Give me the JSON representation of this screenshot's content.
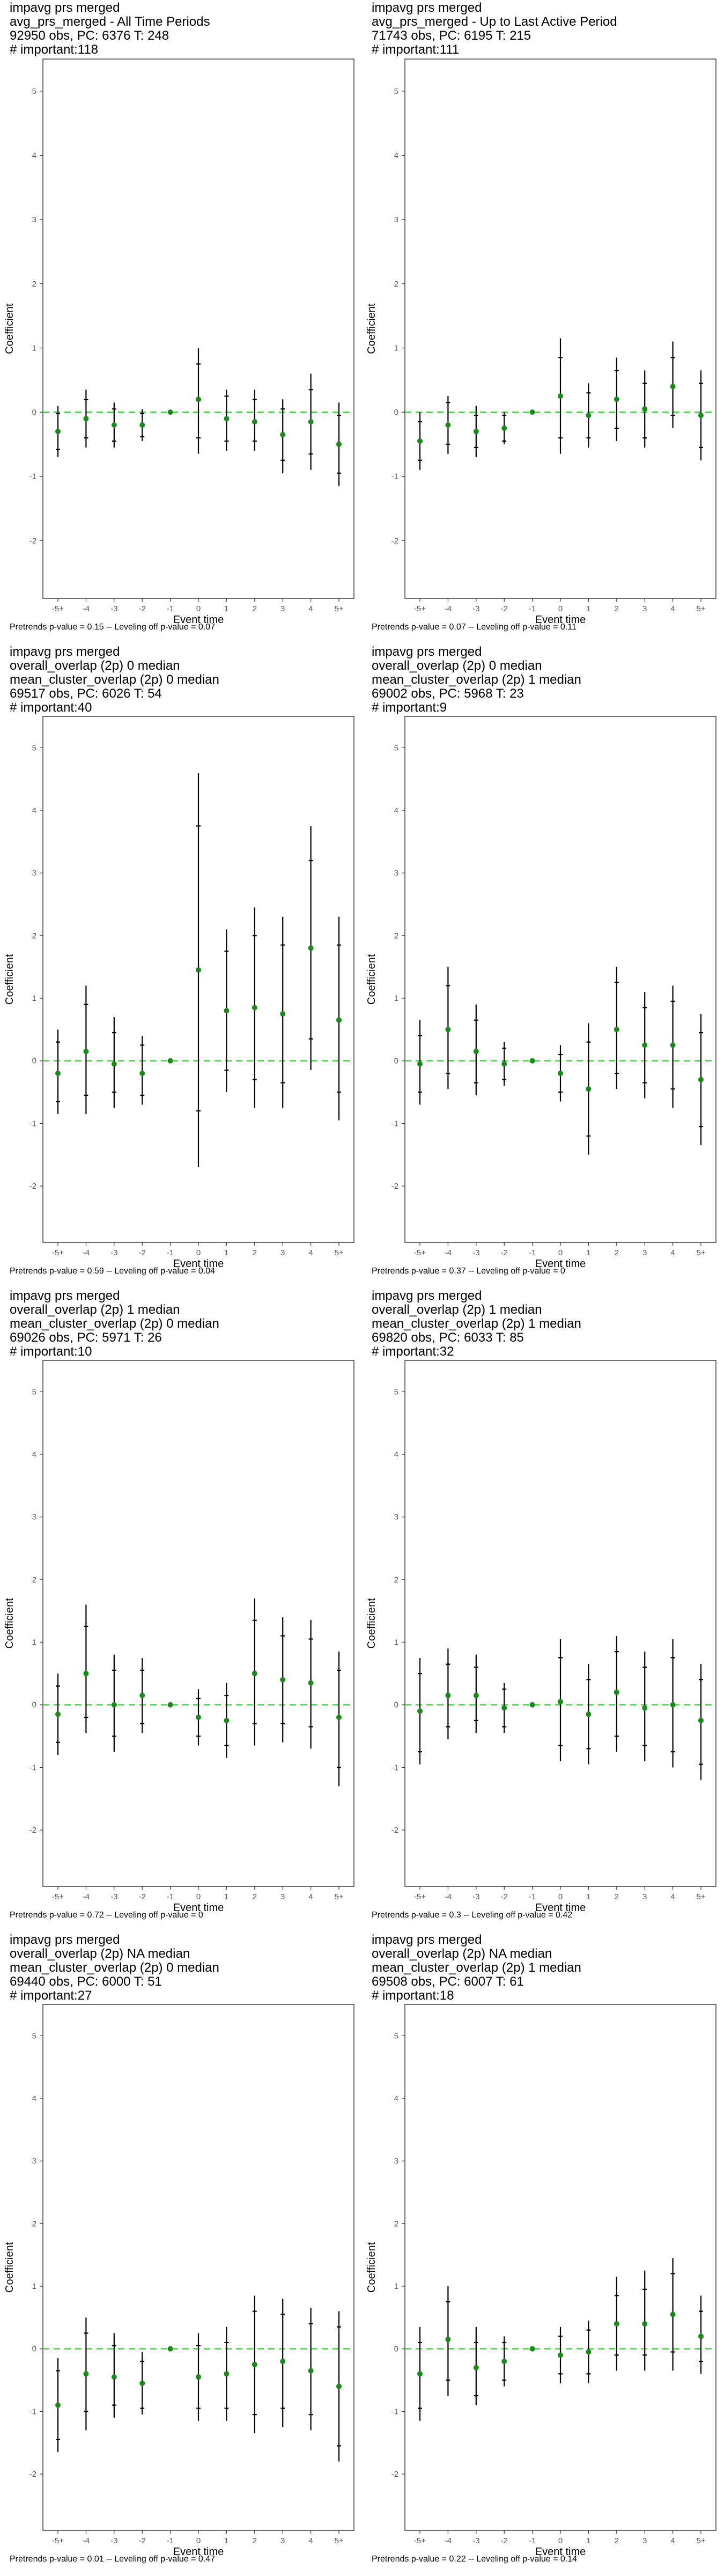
{
  "colors": {
    "zero_line": "#33dd33",
    "point": "#1a8a1a",
    "error_bar": "#000000",
    "frame": "#333333"
  },
  "chart_data": [
    {
      "type": "scatter",
      "title_lines": [
        "impavg prs merged",
        "avg_prs_merged - All Time Periods",
        "92950 obs, PC: 6376 T: 248",
        "# important:118"
      ],
      "footnote": "Pretrends p-value = 0.15 -- Leveling off p-value = 0.07",
      "xlabel": "Event time",
      "ylabel": "Coefficient",
      "categories": [
        "-5+",
        "-4",
        "-3",
        "-2",
        "-1",
        "0",
        "1",
        "2",
        "3",
        "4",
        "5+"
      ],
      "ylim": [
        -2.9,
        5.5
      ],
      "yticks": [
        -2,
        -1,
        0,
        1,
        2,
        3,
        4,
        5
      ],
      "reference_line": 0,
      "points": [
        {
          "y": -0.3,
          "lo": -0.7,
          "hi": 0.1,
          "clo": -0.58,
          "chi": -0.02
        },
        {
          "y": -0.1,
          "lo": -0.55,
          "hi": 0.35,
          "clo": -0.4,
          "chi": 0.2
        },
        {
          "y": -0.2,
          "lo": -0.55,
          "hi": 0.15,
          "clo": -0.45,
          "chi": 0.05
        },
        {
          "y": -0.2,
          "lo": -0.45,
          "hi": 0.05,
          "clo": -0.38,
          "chi": -0.02
        },
        {
          "y": 0.0,
          "lo": 0.0,
          "hi": 0.0,
          "clo": 0.0,
          "chi": 0.0
        },
        {
          "y": 0.2,
          "lo": -0.65,
          "hi": 1.0,
          "clo": -0.4,
          "chi": 0.75
        },
        {
          "y": -0.1,
          "lo": -0.6,
          "hi": 0.35,
          "clo": -0.45,
          "chi": 0.25
        },
        {
          "y": -0.15,
          "lo": -0.6,
          "hi": 0.35,
          "clo": -0.45,
          "chi": 0.2
        },
        {
          "y": -0.35,
          "lo": -0.95,
          "hi": 0.2,
          "clo": -0.75,
          "chi": 0.05
        },
        {
          "y": -0.15,
          "lo": -0.9,
          "hi": 0.6,
          "clo": -0.65,
          "chi": 0.35
        },
        {
          "y": -0.5,
          "lo": -1.15,
          "hi": 0.15,
          "clo": -0.95,
          "chi": -0.05
        }
      ]
    },
    {
      "type": "scatter",
      "title_lines": [
        "impavg prs merged",
        "avg_prs_merged - Up to Last Active Period",
        "71743 obs, PC: 6195 T: 215",
        "# important:111"
      ],
      "footnote": "Pretrends p-value = 0.07 -- Leveling off p-value = 0.11",
      "xlabel": "Event time",
      "ylabel": "Coefficient",
      "categories": [
        "-5+",
        "-4",
        "-3",
        "-2",
        "-1",
        "0",
        "1",
        "2",
        "3",
        "4",
        "5+"
      ],
      "ylim": [
        -2.9,
        5.5
      ],
      "yticks": [
        -2,
        -1,
        0,
        1,
        2,
        3,
        4,
        5
      ],
      "reference_line": 0,
      "points": [
        {
          "y": -0.45,
          "lo": -0.9,
          "hi": 0.0,
          "clo": -0.75,
          "chi": -0.15
        },
        {
          "y": -0.2,
          "lo": -0.65,
          "hi": 0.25,
          "clo": -0.5,
          "chi": 0.15
        },
        {
          "y": -0.3,
          "lo": -0.7,
          "hi": 0.1,
          "clo": -0.55,
          "chi": -0.05
        },
        {
          "y": -0.25,
          "lo": -0.5,
          "hi": 0.0,
          "clo": -0.45,
          "chi": -0.05
        },
        {
          "y": 0.0,
          "lo": 0.0,
          "hi": 0.0,
          "clo": 0.0,
          "chi": 0.0
        },
        {
          "y": 0.25,
          "lo": -0.65,
          "hi": 1.15,
          "clo": -0.4,
          "chi": 0.85
        },
        {
          "y": -0.05,
          "lo": -0.55,
          "hi": 0.45,
          "clo": -0.4,
          "chi": 0.3
        },
        {
          "y": 0.2,
          "lo": -0.45,
          "hi": 0.85,
          "clo": -0.25,
          "chi": 0.65
        },
        {
          "y": 0.05,
          "lo": -0.55,
          "hi": 0.65,
          "clo": -0.4,
          "chi": 0.45
        },
        {
          "y": 0.4,
          "lo": -0.25,
          "hi": 1.1,
          "clo": -0.05,
          "chi": 0.85
        },
        {
          "y": -0.05,
          "lo": -0.75,
          "hi": 0.65,
          "clo": -0.55,
          "chi": 0.45
        }
      ]
    },
    {
      "type": "scatter",
      "title_lines": [
        "impavg prs merged",
        "overall_overlap (2p) 0 median",
        "mean_cluster_overlap (2p) 0 median",
        "69517 obs, PC: 6026 T: 54",
        "# important:40"
      ],
      "footnote": "Pretrends p-value = 0.59 -- Leveling off p-value = 0.04",
      "xlabel": "Event time",
      "ylabel": "Coefficient",
      "categories": [
        "-5+",
        "-4",
        "-3",
        "-2",
        "-1",
        "0",
        "1",
        "2",
        "3",
        "4",
        "5+"
      ],
      "ylim": [
        -2.9,
        5.5
      ],
      "yticks": [
        -2,
        -1,
        0,
        1,
        2,
        3,
        4,
        5
      ],
      "reference_line": 0,
      "points": [
        {
          "y": -0.2,
          "lo": -0.85,
          "hi": 0.5,
          "clo": -0.65,
          "chi": 0.3
        },
        {
          "y": 0.15,
          "lo": -0.85,
          "hi": 1.2,
          "clo": -0.55,
          "chi": 0.9
        },
        {
          "y": -0.05,
          "lo": -0.75,
          "hi": 0.7,
          "clo": -0.5,
          "chi": 0.45
        },
        {
          "y": -0.2,
          "lo": -0.7,
          "hi": 0.4,
          "clo": -0.55,
          "chi": 0.25
        },
        {
          "y": 0.0,
          "lo": 0.0,
          "hi": 0.0,
          "clo": 0.0,
          "chi": 0.0
        },
        {
          "y": 1.45,
          "lo": -1.7,
          "hi": 4.6,
          "clo": -0.8,
          "chi": 3.75
        },
        {
          "y": 0.8,
          "lo": -0.5,
          "hi": 2.1,
          "clo": -0.15,
          "chi": 1.75
        },
        {
          "y": 0.85,
          "lo": -0.75,
          "hi": 2.45,
          "clo": -0.3,
          "chi": 2.0
        },
        {
          "y": 0.75,
          "lo": -0.75,
          "hi": 2.3,
          "clo": -0.35,
          "chi": 1.85
        },
        {
          "y": 1.8,
          "lo": -0.15,
          "hi": 3.75,
          "clo": 0.35,
          "chi": 3.2
        },
        {
          "y": 0.65,
          "lo": -0.95,
          "hi": 2.3,
          "clo": -0.5,
          "chi": 1.85
        }
      ]
    },
    {
      "type": "scatter",
      "title_lines": [
        "impavg prs merged",
        "overall_overlap (2p) 0 median",
        "mean_cluster_overlap (2p) 1 median",
        "69002 obs, PC: 5968 T: 23",
        "# important:9"
      ],
      "footnote": "Pretrends p-value = 0.37 -- Leveling off p-value = 0",
      "xlabel": "Event time",
      "ylabel": "Coefficient",
      "categories": [
        "-5+",
        "-4",
        "-3",
        "-2",
        "-1",
        "0",
        "1",
        "2",
        "3",
        "4",
        "5+"
      ],
      "ylim": [
        -2.9,
        5.5
      ],
      "yticks": [
        -2,
        -1,
        0,
        1,
        2,
        3,
        4,
        5
      ],
      "reference_line": 0,
      "points": [
        {
          "y": -0.05,
          "lo": -0.7,
          "hi": 0.65,
          "clo": -0.5,
          "chi": 0.4
        },
        {
          "y": 0.5,
          "lo": -0.45,
          "hi": 1.5,
          "clo": -0.2,
          "chi": 1.2
        },
        {
          "y": 0.15,
          "lo": -0.55,
          "hi": 0.9,
          "clo": -0.35,
          "chi": 0.65
        },
        {
          "y": -0.05,
          "lo": -0.4,
          "hi": 0.3,
          "clo": -0.3,
          "chi": 0.2
        },
        {
          "y": 0.0,
          "lo": 0.0,
          "hi": 0.0,
          "clo": 0.0,
          "chi": 0.0
        },
        {
          "y": -0.2,
          "lo": -0.65,
          "hi": 0.25,
          "clo": -0.5,
          "chi": 0.1
        },
        {
          "y": -0.45,
          "lo": -1.5,
          "hi": 0.6,
          "clo": -1.2,
          "chi": 0.3
        },
        {
          "y": 0.5,
          "lo": -0.45,
          "hi": 1.5,
          "clo": -0.2,
          "chi": 1.25
        },
        {
          "y": 0.25,
          "lo": -0.6,
          "hi": 1.1,
          "clo": -0.35,
          "chi": 0.85
        },
        {
          "y": 0.25,
          "lo": -0.75,
          "hi": 1.2,
          "clo": -0.45,
          "chi": 0.95
        },
        {
          "y": -0.3,
          "lo": -1.35,
          "hi": 0.75,
          "clo": -1.05,
          "chi": 0.45
        }
      ]
    },
    {
      "type": "scatter",
      "title_lines": [
        "impavg prs merged",
        "overall_overlap (2p) 1 median",
        "mean_cluster_overlap (2p) 0 median",
        "69026 obs, PC: 5971 T: 26",
        "# important:10"
      ],
      "footnote": "Pretrends p-value = 0.72 -- Leveling off p-value = 0",
      "xlabel": "Event time",
      "ylabel": "Coefficient",
      "categories": [
        "-5+",
        "-4",
        "-3",
        "-2",
        "-1",
        "0",
        "1",
        "2",
        "3",
        "4",
        "5+"
      ],
      "ylim": [
        -2.9,
        5.5
      ],
      "yticks": [
        -2,
        -1,
        0,
        1,
        2,
        3,
        4,
        5
      ],
      "reference_line": 0,
      "points": [
        {
          "y": -0.15,
          "lo": -0.8,
          "hi": 0.5,
          "clo": -0.6,
          "chi": 0.3
        },
        {
          "y": 0.5,
          "lo": -0.45,
          "hi": 1.6,
          "clo": -0.2,
          "chi": 1.25
        },
        {
          "y": 0.0,
          "lo": -0.75,
          "hi": 0.8,
          "clo": -0.5,
          "chi": 0.55
        },
        {
          "y": 0.15,
          "lo": -0.45,
          "hi": 0.75,
          "clo": -0.3,
          "chi": 0.55
        },
        {
          "y": 0.0,
          "lo": 0.0,
          "hi": 0.0,
          "clo": 0.0,
          "chi": 0.0
        },
        {
          "y": -0.2,
          "lo": -0.65,
          "hi": 0.25,
          "clo": -0.5,
          "chi": 0.1
        },
        {
          "y": -0.25,
          "lo": -0.85,
          "hi": 0.35,
          "clo": -0.65,
          "chi": 0.15
        },
        {
          "y": 0.5,
          "lo": -0.65,
          "hi": 1.7,
          "clo": -0.3,
          "chi": 1.35
        },
        {
          "y": 0.4,
          "lo": -0.6,
          "hi": 1.4,
          "clo": -0.3,
          "chi": 1.1
        },
        {
          "y": 0.35,
          "lo": -0.7,
          "hi": 1.35,
          "clo": -0.35,
          "chi": 1.05
        },
        {
          "y": -0.2,
          "lo": -1.3,
          "hi": 0.85,
          "clo": -1.0,
          "chi": 0.55
        }
      ]
    },
    {
      "type": "scatter",
      "title_lines": [
        "impavg prs merged",
        "overall_overlap (2p) 1 median",
        "mean_cluster_overlap (2p) 1 median",
        "69820 obs, PC: 6033 T: 85",
        "# important:32"
      ],
      "footnote": "Pretrends p-value = 0.3 -- Leveling off p-value = 0.42",
      "xlabel": "Event time",
      "ylabel": "Coefficient",
      "categories": [
        "-5+",
        "-4",
        "-3",
        "-2",
        "-1",
        "0",
        "1",
        "2",
        "3",
        "4",
        "5+"
      ],
      "ylim": [
        -2.9,
        5.5
      ],
      "yticks": [
        -2,
        -1,
        0,
        1,
        2,
        3,
        4,
        5
      ],
      "reference_line": 0,
      "points": [
        {
          "y": -0.1,
          "lo": -0.95,
          "hi": 0.75,
          "clo": -0.75,
          "chi": 0.5
        },
        {
          "y": 0.15,
          "lo": -0.55,
          "hi": 0.9,
          "clo": -0.35,
          "chi": 0.65
        },
        {
          "y": 0.15,
          "lo": -0.45,
          "hi": 0.8,
          "clo": -0.25,
          "chi": 0.6
        },
        {
          "y": -0.05,
          "lo": -0.45,
          "hi": 0.35,
          "clo": -0.35,
          "chi": 0.25
        },
        {
          "y": 0.0,
          "lo": 0.0,
          "hi": 0.0,
          "clo": 0.0,
          "chi": 0.0
        },
        {
          "y": 0.05,
          "lo": -0.9,
          "hi": 1.05,
          "clo": -0.65,
          "chi": 0.75
        },
        {
          "y": -0.15,
          "lo": -0.95,
          "hi": 0.65,
          "clo": -0.7,
          "chi": 0.4
        },
        {
          "y": 0.2,
          "lo": -0.75,
          "hi": 1.1,
          "clo": -0.5,
          "chi": 0.85
        },
        {
          "y": -0.05,
          "lo": -0.9,
          "hi": 0.85,
          "clo": -0.65,
          "chi": 0.6
        },
        {
          "y": 0.0,
          "lo": -1.0,
          "hi": 1.05,
          "clo": -0.75,
          "chi": 0.75
        },
        {
          "y": -0.25,
          "lo": -1.2,
          "hi": 0.65,
          "clo": -0.95,
          "chi": 0.4
        }
      ]
    },
    {
      "type": "scatter",
      "title_lines": [
        "impavg prs merged",
        "overall_overlap (2p) NA median",
        "mean_cluster_overlap (2p) 0 median",
        "69440 obs, PC: 6000 T: 51",
        "# important:27"
      ],
      "footnote": "Pretrends p-value = 0.01 -- Leveling off p-value = 0.47",
      "xlabel": "Event time",
      "ylabel": "Coefficient",
      "categories": [
        "-5+",
        "-4",
        "-3",
        "-2",
        "-1",
        "0",
        "1",
        "2",
        "3",
        "4",
        "5+"
      ],
      "ylim": [
        -2.9,
        5.5
      ],
      "yticks": [
        -2,
        -1,
        0,
        1,
        2,
        3,
        4,
        5
      ],
      "reference_line": 0,
      "points": [
        {
          "y": -0.9,
          "lo": -1.65,
          "hi": -0.15,
          "clo": -1.45,
          "chi": -0.35
        },
        {
          "y": -0.4,
          "lo": -1.3,
          "hi": 0.5,
          "clo": -1.0,
          "chi": 0.25
        },
        {
          "y": -0.45,
          "lo": -1.1,
          "hi": 0.25,
          "clo": -0.9,
          "chi": 0.05
        },
        {
          "y": -0.55,
          "lo": -1.05,
          "hi": -0.05,
          "clo": -0.95,
          "chi": -0.2
        },
        {
          "y": 0.0,
          "lo": 0.0,
          "hi": 0.0,
          "clo": 0.0,
          "chi": 0.0
        },
        {
          "y": -0.45,
          "lo": -1.15,
          "hi": 0.25,
          "clo": -0.95,
          "chi": 0.05
        },
        {
          "y": -0.4,
          "lo": -1.15,
          "hi": 0.35,
          "clo": -0.95,
          "chi": 0.1
        },
        {
          "y": -0.25,
          "lo": -1.35,
          "hi": 0.85,
          "clo": -1.05,
          "chi": 0.6
        },
        {
          "y": -0.2,
          "lo": -1.25,
          "hi": 0.8,
          "clo": -0.95,
          "chi": 0.55
        },
        {
          "y": -0.35,
          "lo": -1.3,
          "hi": 0.65,
          "clo": -1.05,
          "chi": 0.4
        },
        {
          "y": -0.6,
          "lo": -1.8,
          "hi": 0.6,
          "clo": -1.55,
          "chi": 0.35
        }
      ]
    },
    {
      "type": "scatter",
      "title_lines": [
        "impavg prs merged",
        "overall_overlap (2p) NA median",
        "mean_cluster_overlap (2p) 1 median",
        "69508 obs, PC: 6007 T: 61",
        "# important:18"
      ],
      "footnote": "Pretrends p-value = 0.22 -- Leveling off p-value = 0.14",
      "xlabel": "Event time",
      "ylabel": "Coefficient",
      "categories": [
        "-5+",
        "-4",
        "-3",
        "-2",
        "-1",
        "0",
        "1",
        "2",
        "3",
        "4",
        "5+"
      ],
      "ylim": [
        -2.9,
        5.5
      ],
      "yticks": [
        -2,
        -1,
        0,
        1,
        2,
        3,
        4,
        5
      ],
      "reference_line": 0,
      "points": [
        {
          "y": -0.4,
          "lo": -1.15,
          "hi": 0.35,
          "clo": -0.95,
          "chi": 0.1
        },
        {
          "y": 0.15,
          "lo": -0.75,
          "hi": 1.0,
          "clo": -0.5,
          "chi": 0.75
        },
        {
          "y": -0.3,
          "lo": -0.9,
          "hi": 0.35,
          "clo": -0.75,
          "chi": 0.1
        },
        {
          "y": -0.2,
          "lo": -0.6,
          "hi": 0.2,
          "clo": -0.5,
          "chi": 0.1
        },
        {
          "y": 0.0,
          "lo": 0.0,
          "hi": 0.0,
          "clo": 0.0,
          "chi": 0.0
        },
        {
          "y": -0.1,
          "lo": -0.55,
          "hi": 0.35,
          "clo": -0.4,
          "chi": 0.2
        },
        {
          "y": -0.05,
          "lo": -0.55,
          "hi": 0.45,
          "clo": -0.4,
          "chi": 0.3
        },
        {
          "y": 0.4,
          "lo": -0.35,
          "hi": 1.15,
          "clo": -0.1,
          "chi": 0.85
        },
        {
          "y": 0.4,
          "lo": -0.35,
          "hi": 1.25,
          "clo": -0.1,
          "chi": 0.95
        },
        {
          "y": 0.55,
          "lo": -0.35,
          "hi": 1.45,
          "clo": -0.05,
          "chi": 1.2
        },
        {
          "y": 0.2,
          "lo": -0.4,
          "hi": 0.85,
          "clo": -0.2,
          "chi": 0.6
        }
      ]
    }
  ]
}
